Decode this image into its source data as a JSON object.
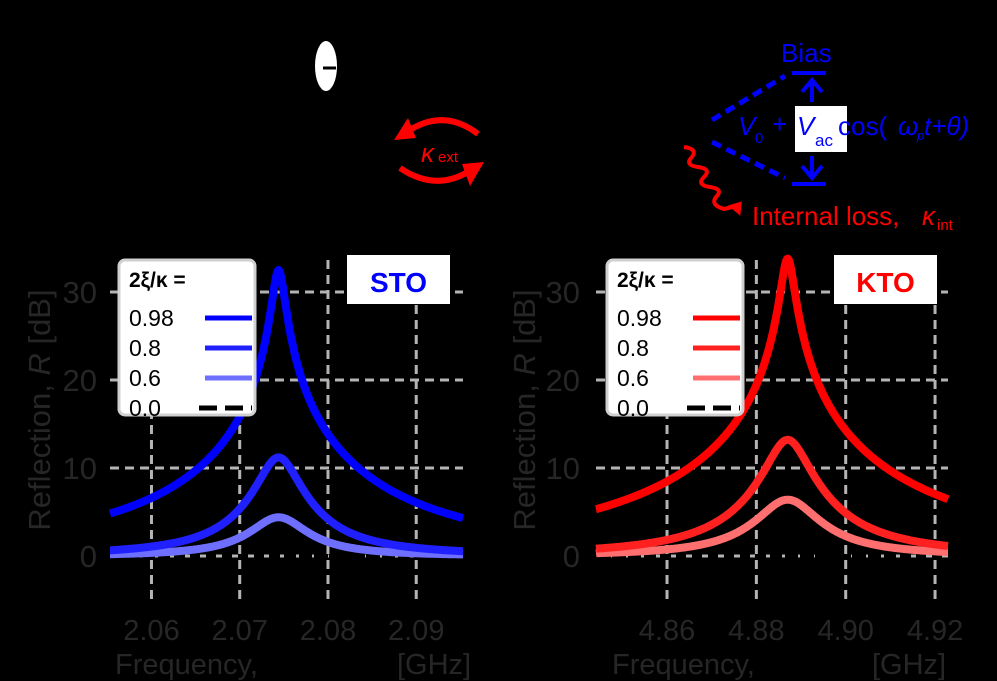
{
  "diagram": {
    "electron_symbol": "−",
    "kappa_ext_label": "κ",
    "kappa_ext_sub": "ext",
    "bias_label": "Bias",
    "bias_formula": {
      "v0": "V",
      "v0_sub": "0",
      "plus": "+",
      "vac": "V",
      "vac_sub": "ac",
      "cos": "cos(",
      "omega": "ω",
      "omega_sub": "p",
      "t_theta": "t+θ)"
    },
    "internal_loss_label": "Internal loss, ",
    "kappa_int_label": "κ",
    "kappa_int_sub": "int",
    "colors": {
      "blue": "#0000ff",
      "red": "#ff0000"
    }
  },
  "chart_data": [
    {
      "type": "line",
      "panel": "left",
      "material_label": "STO",
      "material_color": "#0000ff",
      "xlabel": "Frequency,",
      "xunit": "[GHz]",
      "ylabel_prefix": "Reflection, ",
      "ylabel_var": "R",
      "ylabel_suffix": " [dB]",
      "xlim": [
        2.0553,
        2.0953
      ],
      "ylim": [
        -5,
        35
      ],
      "xticks": [
        2.06,
        2.07,
        2.08,
        2.09
      ],
      "xtick_labels": [
        "2.06",
        "2.07",
        "2.08",
        "2.09"
      ],
      "yticks": [
        0,
        10,
        20,
        30
      ],
      "ytick_labels": [
        "0",
        "10",
        "20",
        "30"
      ],
      "grid": true,
      "center_freq": 2.0744,
      "legend_title": "2ξ/κ =",
      "series": [
        {
          "name": "0.98",
          "peak_db": 32.5,
          "hwhm": 0.0042,
          "color": "#0000ff",
          "opacity": 1.0,
          "dashed": false
        },
        {
          "name": "0.8",
          "peak_db": 11.2,
          "hwhm": 0.0042,
          "color": "#2020ff",
          "opacity": 0.85,
          "dashed": false
        },
        {
          "name": "0.6",
          "peak_db": 4.4,
          "hwhm": 0.0042,
          "color": "#6f6fff",
          "opacity": 0.7,
          "dashed": false
        },
        {
          "name": "0.0",
          "peak_db": 0.0,
          "hwhm": 0.0042,
          "color": "#000000",
          "opacity": 1.0,
          "dashed": true
        }
      ]
    },
    {
      "type": "line",
      "panel": "right",
      "material_label": "KTO",
      "material_color": "#ff0000",
      "xlabel": "Frequency,",
      "xunit": "[GHz]",
      "ylabel_prefix": "Reflection, ",
      "ylabel_var": "R",
      "ylabel_suffix": " [dB]",
      "xlim": [
        4.8441,
        4.9229
      ],
      "ylim": [
        -5,
        35
      ],
      "xticks": [
        4.86,
        4.88,
        4.9,
        4.92
      ],
      "xtick_labels": [
        "4.86",
        "4.88",
        "4.90",
        "4.92"
      ],
      "yticks": [
        0,
        10,
        20,
        30
      ],
      "ytick_labels": [
        "0",
        "10",
        "20",
        "30"
      ],
      "grid": true,
      "center_freq": 4.887,
      "legend_title": "2ξ/κ =",
      "series": [
        {
          "name": "0.98",
          "peak_db": 33.8,
          "hwhm": 0.0095,
          "color": "#ff0000",
          "opacity": 1.0,
          "dashed": false
        },
        {
          "name": "0.8",
          "peak_db": 13.2,
          "hwhm": 0.0095,
          "color": "#ff2020",
          "opacity": 0.85,
          "dashed": false
        },
        {
          "name": "0.6",
          "peak_db": 6.4,
          "hwhm": 0.0095,
          "color": "#ff6f6f",
          "opacity": 0.7,
          "dashed": false
        },
        {
          "name": "0.0",
          "peak_db": 0.0,
          "hwhm": 0.0095,
          "color": "#000000",
          "opacity": 1.0,
          "dashed": true
        }
      ]
    }
  ]
}
